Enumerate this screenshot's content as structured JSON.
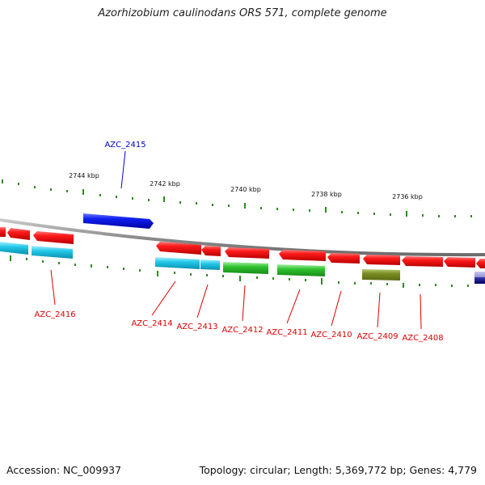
{
  "title": "Azorhizobium caulinodans ORS 571, complete genome",
  "footer": {
    "accession": "Accession: NC_009937",
    "topology": "Topology: circular; Length: 5,369,772 bp; Genes: 4,779"
  },
  "scale_labels": [
    "2744 kbp",
    "2742 kbp",
    "2740 kbp",
    "2738 kbp",
    "2736 kbp"
  ],
  "gene_labels": {
    "top": [
      "AZC_2415"
    ],
    "bottom": [
      "AZC_2416",
      "AZC_2414",
      "AZC_2413",
      "AZC_2412",
      "AZC_2411",
      "AZC_2410",
      "AZC_2409",
      "AZC_2408"
    ]
  },
  "colors": {
    "label_top": "#0000cc",
    "label_bottom": "#dd0000",
    "gene_red": "#ff1a1a",
    "gene_blue": "#0a1aee",
    "gene_cyan": "#14c8e6",
    "gene_green": "#2ec22e",
    "gene_olive": "#7a8c22",
    "tick": "#2d8a1e",
    "backbone": "#8a8a8a"
  }
}
